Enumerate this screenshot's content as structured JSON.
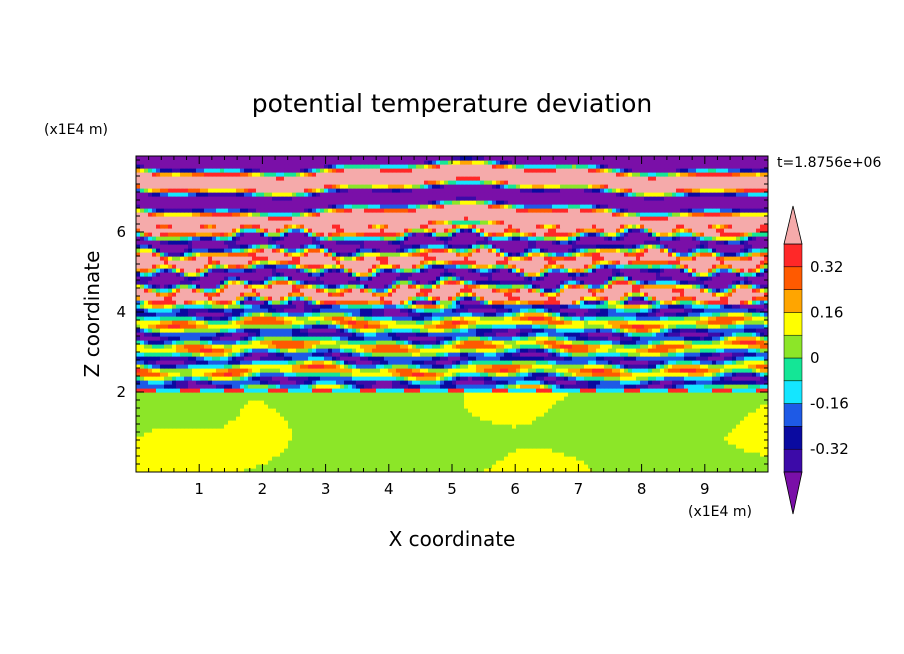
{
  "chart_data": {
    "type": "heatmap",
    "title": "potential temperature deviation",
    "xlabel": "X coordinate",
    "ylabel": "Z coordinate",
    "x_unit": "(x1E4 m)",
    "z_unit": "(x1E4 m)",
    "time_label": "t=1.8756e+06",
    "xlim": [
      0,
      10
    ],
    "zlim": [
      0,
      7.9
    ],
    "x_ticks": [
      "1",
      "2",
      "3",
      "4",
      "5",
      "6",
      "7",
      "8",
      "9"
    ],
    "z_ticks": [
      "2",
      "4",
      "6"
    ],
    "colorbar": {
      "levels": [
        -0.4,
        -0.32,
        -0.24,
        -0.16,
        -0.08,
        0,
        0.08,
        0.16,
        0.24,
        0.32,
        0.4
      ],
      "tick_labels": [
        "0.32",
        "0.16",
        "0",
        "-0.16",
        "-0.32"
      ],
      "tick_values": [
        0.32,
        0.16,
        0,
        -0.16,
        -0.32
      ],
      "colors": [
        "#7a0fa8",
        "#3c0aa8",
        "#0a0aa0",
        "#1e5ae6",
        "#14e6ff",
        "#14e696",
        "#8ce628",
        "#ffff00",
        "#ffa500",
        "#ff5a00",
        "#ff2828",
        "#f5aaaa"
      ],
      "extend": "both"
    },
    "bands": [
      {
        "z0": 0.0,
        "z1": 2.0,
        "level": "0 to 0.08 (green, light green patches)"
      },
      {
        "z0": 2.0,
        "z1": 4.2,
        "level": "mixed -0.32 to 0.32 (cyan/green/blue/red streaks)"
      },
      {
        "z0": 4.2,
        "z1": 6.2,
        "level": "alternating < -0.4 and > 0.4 with small-scale waves"
      },
      {
        "z0": 6.2,
        "z1": 7.9,
        "level": "alternating < -0.4 (purple) and > 0.4 (pink) layers"
      }
    ]
  }
}
